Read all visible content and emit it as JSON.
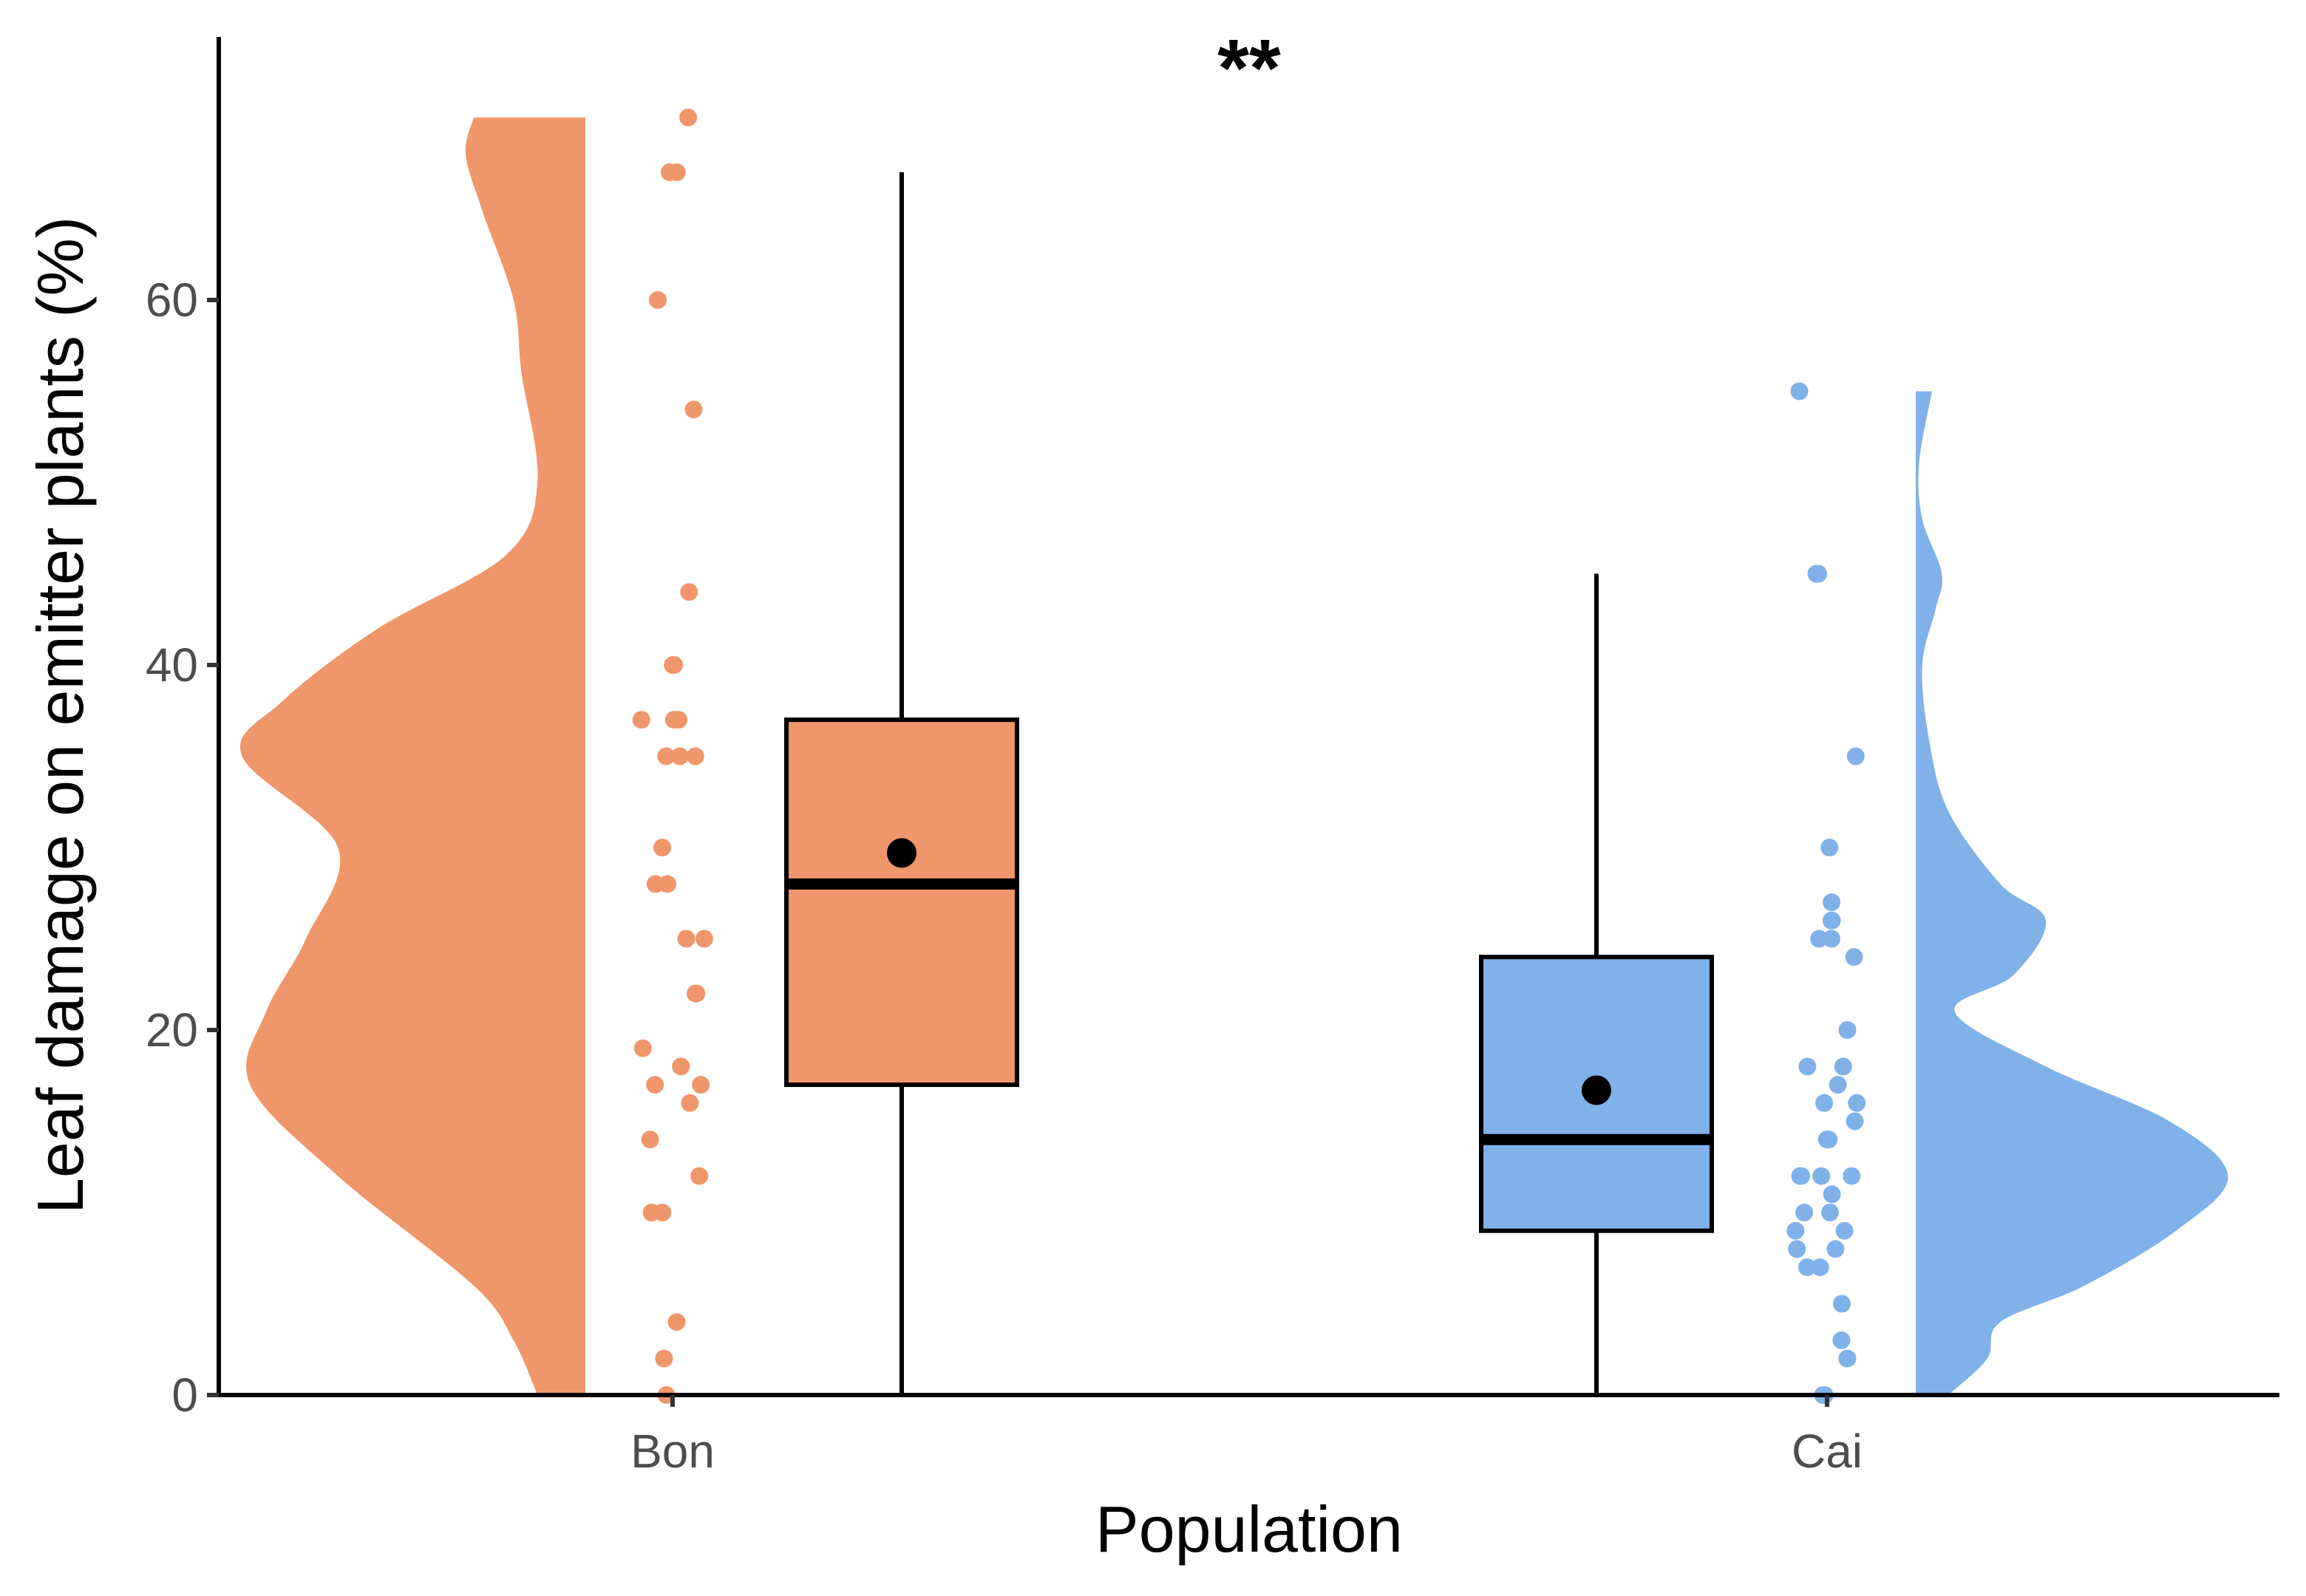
{
  "chart_data": {
    "type": "raincloud",
    "title": "",
    "xlabel": "Population",
    "ylabel": "Leaf damage on emitter plants (%)",
    "ylim": [
      0,
      70
    ],
    "y_ticks": [
      0,
      20,
      40,
      60
    ],
    "grid": false,
    "annotation": "**",
    "categories": [
      "Bon",
      "Cai"
    ],
    "series": [
      {
        "category": "Bon",
        "color": "#EF976B",
        "points": [
          70,
          67,
          67,
          60,
          54,
          44,
          40,
          40,
          37,
          37,
          37,
          35,
          35,
          35,
          30,
          28,
          28,
          25,
          25,
          22,
          22,
          19,
          18,
          17,
          17,
          16,
          14,
          12,
          10,
          10,
          4,
          2,
          0
        ],
        "box": {
          "q1": 17,
          "median": 28,
          "q3": 37,
          "whisker_low": 0,
          "whisker_high": 67,
          "mean": 29.7
        },
        "density_side": "left",
        "density": [
          [
            0,
            0.12
          ],
          [
            3,
            0.18
          ],
          [
            6,
            0.28
          ],
          [
            12,
            0.62
          ],
          [
            17,
            0.84
          ],
          [
            21,
            0.8
          ],
          [
            25,
            0.7
          ],
          [
            30,
            0.62
          ],
          [
            35,
            0.86
          ],
          [
            38,
            0.76
          ],
          [
            42,
            0.52
          ],
          [
            46,
            0.2
          ],
          [
            50,
            0.12
          ],
          [
            56,
            0.16
          ],
          [
            60,
            0.18
          ],
          [
            65,
            0.26
          ],
          [
            68,
            0.3
          ],
          [
            70,
            0.28
          ]
        ]
      },
      {
        "category": "Cai",
        "color": "#80B1E9",
        "points": [
          55,
          45,
          45,
          35,
          30,
          27,
          26,
          26,
          25,
          25,
          24,
          20,
          18,
          18,
          17,
          16,
          16,
          15,
          14,
          14,
          14,
          12,
          12,
          12,
          12,
          11,
          10,
          10,
          9,
          9,
          8,
          8,
          7,
          7,
          5,
          3,
          2,
          0,
          0
        ],
        "box": {
          "q1": 9,
          "median": 14,
          "q3": 24,
          "whisker_low": 0,
          "whisker_high": 45,
          "mean": 16.7
        },
        "density_side": "right",
        "density": [
          [
            0,
            0.1
          ],
          [
            2,
            0.22
          ],
          [
            4,
            0.26
          ],
          [
            6,
            0.52
          ],
          [
            9,
            0.8
          ],
          [
            12,
            0.96
          ],
          [
            15,
            0.78
          ],
          [
            18,
            0.4
          ],
          [
            21,
            0.12
          ],
          [
            23,
            0.3
          ],
          [
            26,
            0.4
          ],
          [
            28,
            0.26
          ],
          [
            32,
            0.1
          ],
          [
            36,
            0.04
          ],
          [
            40,
            0.02
          ],
          [
            43,
            0.06
          ],
          [
            45,
            0.08
          ],
          [
            48,
            0.02
          ],
          [
            51,
            0.01
          ],
          [
            55,
            0.05
          ]
        ]
      }
    ]
  }
}
